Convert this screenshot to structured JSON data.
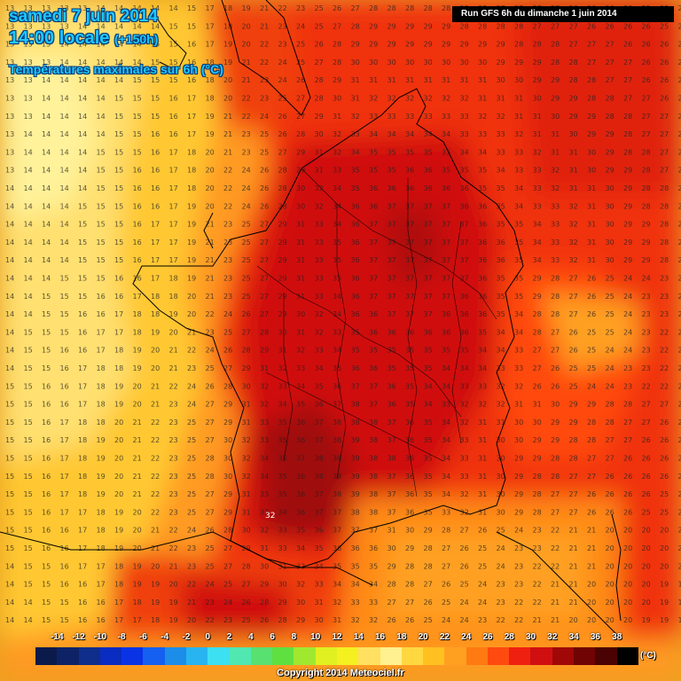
{
  "header": {
    "date": "samedi 7 juin 2014",
    "time": "14:00 locale",
    "lead": "(+150h)",
    "parameter": "Températures maximales sur 6h (°C)",
    "run": "Run GFS 6h du dimanche 1 juin 2014"
  },
  "legend": {
    "unit": "(°C)",
    "labels": [
      "-14",
      "-12",
      "-10",
      "-8",
      "-6",
      "-4",
      "-2",
      "0",
      "2",
      "4",
      "6",
      "8",
      "10",
      "12",
      "14",
      "16",
      "18",
      "20",
      "22",
      "24",
      "26",
      "28",
      "30",
      "32",
      "34",
      "36",
      "38"
    ],
    "colors": [
      "#0a1a4a",
      "#0d2366",
      "#0f2d8a",
      "#0b2cc0",
      "#0a33e6",
      "#1560f0",
      "#1c8de8",
      "#27b4f0",
      "#3ce0f0",
      "#50e8b0",
      "#58e070",
      "#60e040",
      "#a0e830",
      "#e0f020",
      "#f5f020",
      "#ffe060",
      "#fff090",
      "#ffd840",
      "#ffc020",
      "#ffa020",
      "#ff7a10",
      "#ff4a10",
      "#f02010",
      "#d01010",
      "#a00808",
      "#700404",
      "#4a0202",
      "#000000"
    ]
  },
  "labels": {
    "hotspot": "32"
  },
  "footer": {
    "copyright": "Copyright 2014 Meteociel.fr"
  }
}
